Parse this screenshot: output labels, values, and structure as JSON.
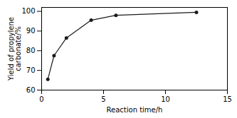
{
  "chart_data": {
    "type": "line",
    "x": [
      0.5,
      1.0,
      2.0,
      4.0,
      6.0,
      12.5
    ],
    "values": [
      65.5,
      77.5,
      86.5,
      95.5,
      98.0,
      99.5
    ],
    "xlabel": "Reaction time/h",
    "ylabel": "Yield of propylene\ncarbonate/%",
    "xlim": [
      0,
      15
    ],
    "ylim": [
      60,
      102
    ],
    "xticks": [
      0,
      5,
      10,
      15
    ],
    "yticks": [
      60,
      70,
      80,
      90,
      100
    ],
    "color": "#1a1a1a",
    "marker": "circle"
  }
}
